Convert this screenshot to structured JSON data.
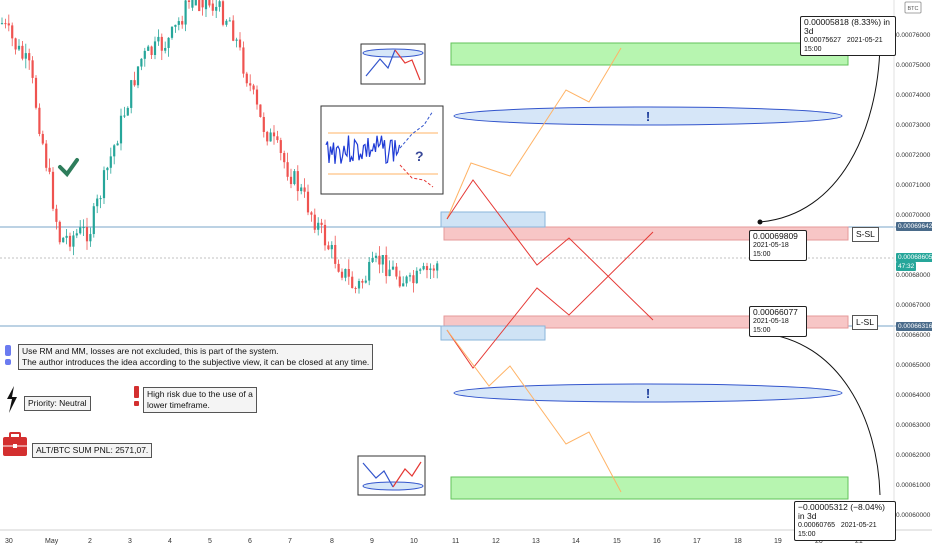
{
  "chart_data": {
    "type": "candlestick",
    "pair_badge": "BTC",
    "yaxis_ticks": [
      "0.00076000",
      "0.00075000",
      "0.00074000",
      "0.00073000",
      "0.00072000",
      "0.00071000",
      "0.00070000",
      "0.00068000",
      "0.00067000",
      "0.00066000",
      "0.00065000",
      "0.00064000",
      "0.00063000",
      "0.00062000",
      "0.00061000",
      "0.00060000"
    ],
    "xaxis_ticks": [
      "30",
      "May",
      "2",
      "3",
      "4",
      "5",
      "6",
      "7",
      "8",
      "9",
      "10",
      "11",
      "12",
      "13",
      "14",
      "15",
      "16",
      "17",
      "18",
      "19",
      "20",
      "21"
    ],
    "price_labels": {
      "s_sl": {
        "value": "0.00069642",
        "label": "S-SL"
      },
      "current": {
        "value": "0.00068605",
        "sub": "47:32"
      },
      "l_sl": {
        "value": "0.00066316",
        "label": "L-SL"
      }
    },
    "targets": {
      "upper": {
        "main": "0.00005818 (8.33%) in 3d",
        "sub1": "0.00075627",
        "sub2": "2021-05-21  15:00"
      },
      "mid_upper": {
        "main": "0.00069809",
        "sub": "2021-05-18 15:00"
      },
      "mid_lower": {
        "main": "0.00066077",
        "sub": "2021-05-18 15:00"
      },
      "lower": {
        "main": "−0.00005312 (−8.04%) in 3d",
        "sub1": "0.00060765",
        "sub2": "2021-05-21  15:00"
      }
    }
  },
  "notes": {
    "disclaimer_line1": "Use RM and MM, losses are not excluded, this is part of the system.",
    "disclaimer_line2": "The author introduces the idea according to the subjective view, it can be closed at any time.",
    "priority": "Priority: Neutral",
    "risk_line1": "High risk due to the use of a",
    "risk_line2": "lower timeframe.",
    "pnl": "ALT/BTC SUM PNL: 2571,07.",
    "question_mark": "?",
    "exclamation": "!"
  },
  "colors": {
    "up": "#26a69a",
    "down": "#ef5350",
    "green_zone": "#b7f5b0",
    "red_zone": "#f7c6c6",
    "blue_zone": "#cfe3f5",
    "ellipse": "#d6e6f8"
  }
}
